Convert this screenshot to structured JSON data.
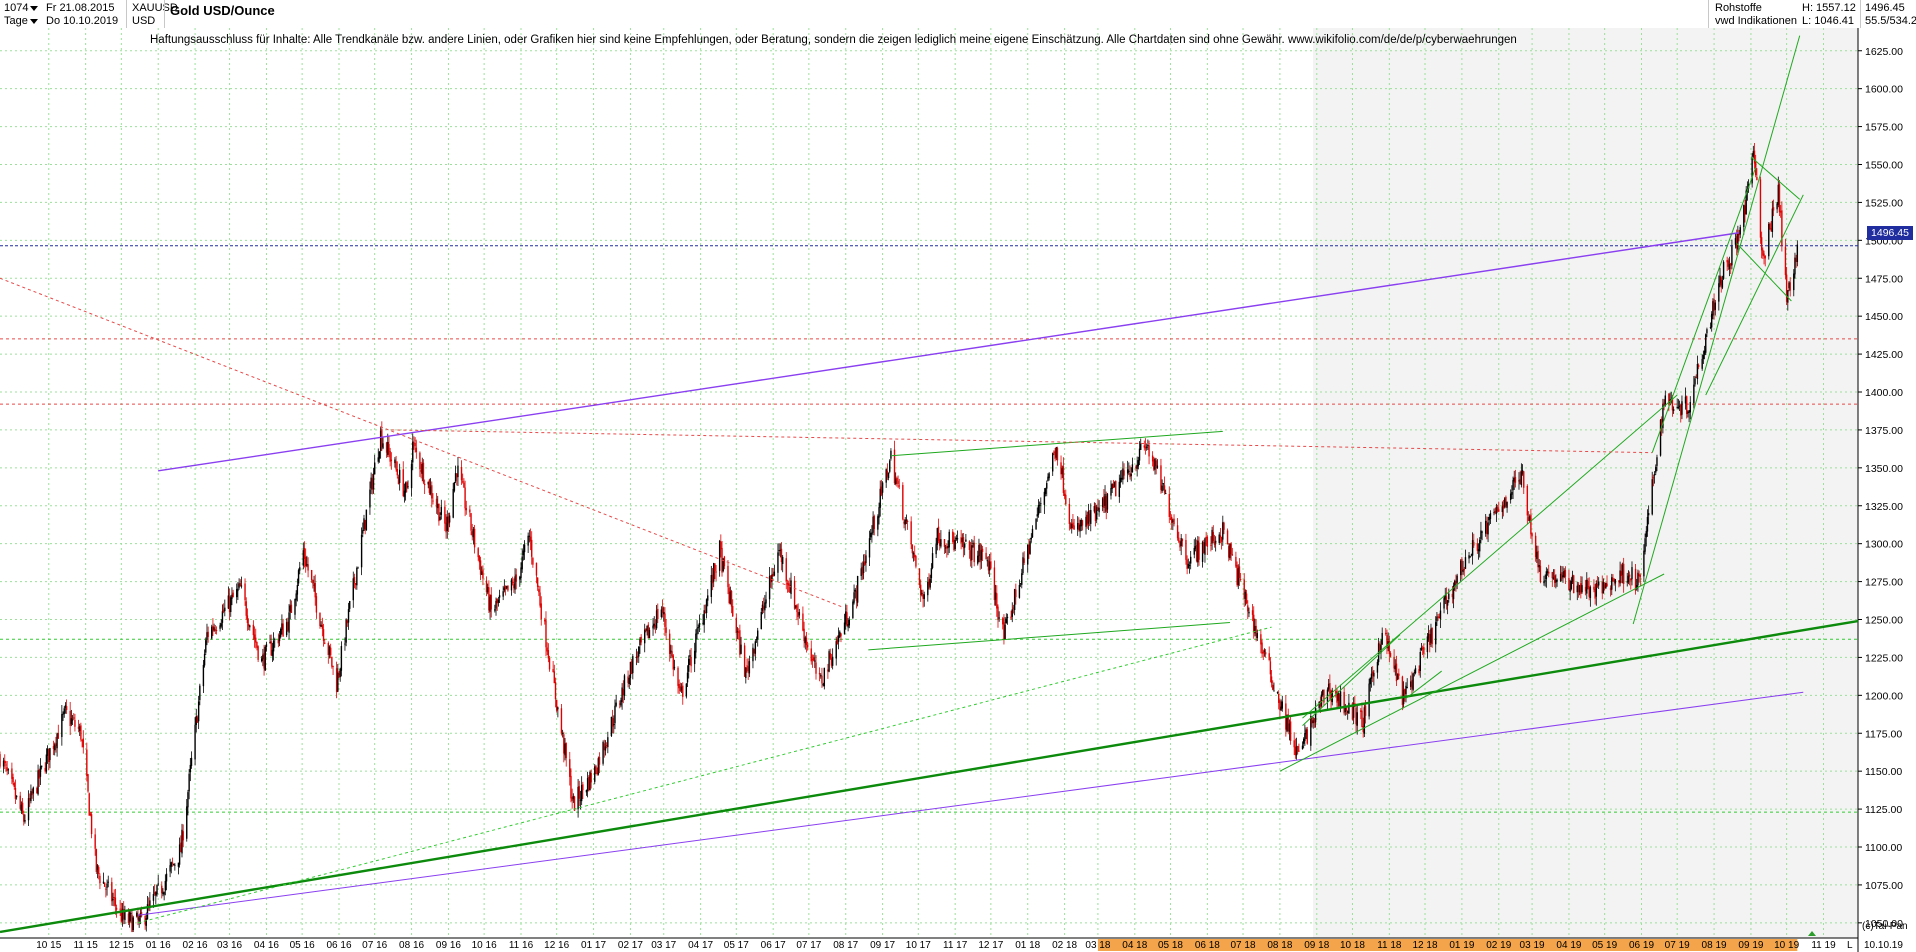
{
  "header": {
    "bars": "1074",
    "period": "Tage",
    "date_from": "Fr 21.08.2015",
    "date_to": "Do 10.10.2019",
    "symbol": "XAUUSD",
    "currency": "USD",
    "title": "Gold USD/Ounce",
    "category": "Rohstoffe",
    "source": "vwd Indikationen",
    "high_label": "H: 1557.12",
    "low_label": "L: 1046.41",
    "last_value": "1496.45",
    "volume_info": "55.5/534.2"
  },
  "disclaimer": "Haftungsausschluss für Inhalte: Alle Trendkanäle bzw. andere Linien, oder Grafiken hier sind keine Empfehlungen, oder Beratung, sondern die zeigen lediglich meine eigene Einschätzung. Alle Chartdaten sind ohne Gewähr.  www.wikifolio.com/de/de/p/cyberwaehrungen",
  "footer": {
    "credit": "(c)Tai-Pan",
    "end_date": "10.10.19",
    "axis_marker": "L"
  },
  "chart_data": {
    "type": "candlestick",
    "title": "Gold USD/Ounce",
    "ylim": [
      1040,
      1640
    ],
    "y_ticks": [
      1050,
      1075,
      1100,
      1125,
      1150,
      1175,
      1200,
      1225,
      1250,
      1275,
      1300,
      1325,
      1350,
      1375,
      1400,
      1425,
      1450,
      1475,
      1500,
      1525,
      1550,
      1575,
      1600,
      1625
    ],
    "x_range": [
      "2015-08-21",
      "2019-11-30"
    ],
    "x_ticks": [
      "10 15",
      "11 15",
      "12 15",
      "01 16",
      "02 16",
      "03 16",
      "04 16",
      "05 16",
      "06 16",
      "07 16",
      "08 16",
      "09 16",
      "10 16",
      "11 16",
      "12 16",
      "01 17",
      "02 17",
      "03 17",
      "04 17",
      "05 17",
      "06 17",
      "07 17",
      "08 17",
      "09 17",
      "10 17",
      "11 17",
      "12 17",
      "01 18",
      "02 18",
      "03 18",
      "04 18",
      "05 18",
      "06 18",
      "07 18",
      "08 18",
      "09 18",
      "10 18",
      "11 18",
      "12 18",
      "01 19",
      "02 19",
      "03 19",
      "04 19",
      "05 19",
      "06 19",
      "07 19",
      "08 19",
      "09 19",
      "10 19",
      "11 19"
    ],
    "last_price": 1496.45,
    "high": 1557.12,
    "low": 1046.41,
    "grid": true,
    "price_path": [
      [
        "2015-08-21",
        1160
      ],
      [
        "2015-09-10",
        1118
      ],
      [
        "2015-09-25",
        1150
      ],
      [
        "2015-10-15",
        1188
      ],
      [
        "2015-10-28",
        1175
      ],
      [
        "2015-11-10",
        1085
      ],
      [
        "2015-12-03",
        1052
      ],
      [
        "2015-12-17",
        1050
      ],
      [
        "2016-01-05",
        1075
      ],
      [
        "2016-01-20",
        1098
      ],
      [
        "2016-02-11",
        1240
      ],
      [
        "2016-03-10",
        1270
      ],
      [
        "2016-03-28",
        1222
      ],
      [
        "2016-04-20",
        1250
      ],
      [
        "2016-05-02",
        1295
      ],
      [
        "2016-05-30",
        1208
      ],
      [
        "2016-06-24",
        1320
      ],
      [
        "2016-07-06",
        1372
      ],
      [
        "2016-07-28",
        1332
      ],
      [
        "2016-08-02",
        1365
      ],
      [
        "2016-08-30",
        1310
      ],
      [
        "2016-09-08",
        1350
      ],
      [
        "2016-10-07",
        1255
      ],
      [
        "2016-10-28",
        1275
      ],
      [
        "2016-11-08",
        1305
      ],
      [
        "2016-12-15",
        1128
      ],
      [
        "2017-01-02",
        1150
      ],
      [
        "2017-02-02",
        1220
      ],
      [
        "2017-02-27",
        1258
      ],
      [
        "2017-03-15",
        1198
      ],
      [
        "2017-04-17",
        1295
      ],
      [
        "2017-05-09",
        1214
      ],
      [
        "2017-06-06",
        1296
      ],
      [
        "2017-07-10",
        1207
      ],
      [
        "2017-08-08",
        1263
      ],
      [
        "2017-09-08",
        1357
      ],
      [
        "2017-10-06",
        1260
      ],
      [
        "2017-10-16",
        1306
      ],
      [
        "2017-11-28",
        1290
      ],
      [
        "2017-12-12",
        1238
      ],
      [
        "2018-01-25",
        1365
      ],
      [
        "2018-02-08",
        1307
      ],
      [
        "2018-03-01",
        1320
      ],
      [
        "2018-04-11",
        1365
      ],
      [
        "2018-05-15",
        1290
      ],
      [
        "2018-06-14",
        1308
      ],
      [
        "2018-08-16",
        1160
      ],
      [
        "2018-09-10",
        1205
      ],
      [
        "2018-10-10",
        1182
      ],
      [
        "2018-10-26",
        1243
      ],
      [
        "2018-11-13",
        1198
      ],
      [
        "2019-01-01",
        1285
      ],
      [
        "2019-02-20",
        1346
      ],
      [
        "2019-03-07",
        1282
      ],
      [
        "2019-04-23",
        1268
      ],
      [
        "2019-05-20",
        1282
      ],
      [
        "2019-05-30",
        1273
      ],
      [
        "2019-06-20",
        1395
      ],
      [
        "2019-07-10",
        1390
      ],
      [
        "2019-08-06",
        1475
      ],
      [
        "2019-08-22",
        1502
      ],
      [
        "2019-09-04",
        1557
      ],
      [
        "2019-09-11",
        1485
      ],
      [
        "2019-09-24",
        1535
      ],
      [
        "2019-10-01",
        1460
      ],
      [
        "2019-10-10",
        1496
      ]
    ],
    "lines": [
      {
        "kind": "purple",
        "p1": [
          "2015-12-15",
          1055
        ],
        "p2": [
          "2019-10-15",
          1202
        ],
        "width": 1
      },
      {
        "kind": "purple",
        "p1": [
          "2016-01-01",
          1348
        ],
        "p2": [
          "2019-08-22",
          1505
        ],
        "width": 1.4
      },
      {
        "kind": "dkgreen",
        "p1": [
          "2015-08-21",
          1044
        ],
        "p2": [
          "2019-11-30",
          1249
        ],
        "width": 2.4
      },
      {
        "kind": "green",
        "p1": [
          "2017-09-08",
          1358
        ],
        "p2": [
          "2018-06-14",
          1374
        ],
        "width": 1
      },
      {
        "kind": "green",
        "p1": [
          "2017-08-20",
          1230
        ],
        "p2": [
          "2018-06-20",
          1248
        ],
        "width": 1
      },
      {
        "kind": "green",
        "p1": [
          "2018-08-20",
          1185
        ],
        "p2": [
          "2019-07-01",
          1398
        ],
        "width": 1
      },
      {
        "kind": "green",
        "p1": [
          "2018-08-01",
          1150
        ],
        "p2": [
          "2019-06-20",
          1280
        ],
        "width": 1
      },
      {
        "kind": "green",
        "p1": [
          "2018-11-15",
          1198
        ],
        "p2": [
          "2018-12-15",
          1216
        ],
        "width": 1
      },
      {
        "kind": "green",
        "p1": [
          "2018-08-20",
          1180
        ],
        "p2": [
          "2018-11-10",
          1240
        ],
        "width": 1
      },
      {
        "kind": "green",
        "p1": [
          "2019-05-25",
          1247
        ],
        "p2": [
          "2019-10-12",
          1635
        ],
        "width": 1
      },
      {
        "kind": "green",
        "p1": [
          "2019-06-10",
          1360
        ],
        "p2": [
          "2019-09-05",
          1548
        ],
        "width": 1
      },
      {
        "kind": "green",
        "p1": [
          "2019-07-25",
          1398
        ],
        "p2": [
          "2019-10-15",
          1530
        ],
        "width": 1
      },
      {
        "kind": "green",
        "p1": [
          "2019-09-01",
          1555
        ],
        "p2": [
          "2019-10-12",
          1527
        ],
        "width": 1
      },
      {
        "kind": "green",
        "p1": [
          "2019-08-20",
          1498
        ],
        "p2": [
          "2019-10-05",
          1460
        ],
        "width": 1
      },
      {
        "kind": "greendot",
        "p1": [
          "2015-12-15",
          1050
        ],
        "p2": [
          "2018-07-25",
          1245
        ],
        "width": 1
      },
      {
        "kind": "reddot",
        "p1": [
          "2015-08-21",
          1475
        ],
        "p2": [
          "2017-07-30",
          1258
        ],
        "width": 1
      },
      {
        "kind": "reddot",
        "p1": [
          "2016-07-15",
          1375
        ],
        "p2": [
          "2019-06-10",
          1360
        ],
        "width": 1
      }
    ],
    "hlines": [
      {
        "kind": "blue",
        "y": 1496.45
      },
      {
        "kind": "reddot",
        "y": 1435
      },
      {
        "kind": "reddot",
        "y": 1392
      },
      {
        "kind": "greendot",
        "y": 1237
      },
      {
        "kind": "greendot",
        "y": 1123
      }
    ]
  }
}
